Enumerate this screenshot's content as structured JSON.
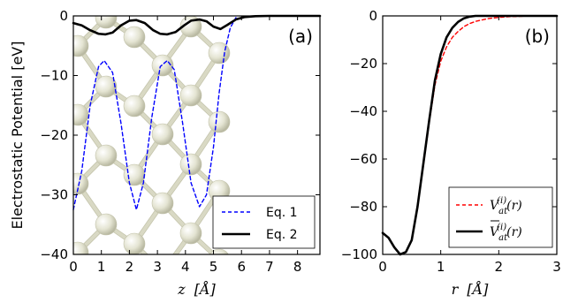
{
  "chart_data": [
    {
      "type": "line",
      "panel_label": "(a)",
      "xlabel_var": "z",
      "xlabel_unit": "[Å]",
      "ylabel": "Electrostatic Potential [eV]",
      "xlim": [
        0,
        8.8
      ],
      "ylim": [
        -40,
        0
      ],
      "xticks": [
        0,
        1,
        2,
        3,
        4,
        5,
        6,
        7,
        8
      ],
      "yticks": [
        0,
        -10,
        -20,
        -30,
        -40
      ],
      "legend_position": "bottom-right",
      "background": "atomic lattice illustration (spheres and bonds)",
      "series": [
        {
          "name": "Eq. 1",
          "style": "dashed",
          "color": "#0000ff",
          "x": [
            0.0,
            0.3,
            0.6,
            0.9,
            1.1,
            1.4,
            1.7,
            2.0,
            2.25,
            2.5,
            2.8,
            3.1,
            3.35,
            3.6,
            3.9,
            4.2,
            4.5,
            4.75,
            5.0,
            5.2,
            5.4,
            5.6,
            5.8
          ],
          "y": [
            -32.5,
            -26.0,
            -15.0,
            -8.5,
            -7.5,
            -9.5,
            -18.0,
            -28.0,
            -32.5,
            -28.0,
            -17.0,
            -8.5,
            -7.5,
            -9.0,
            -18.0,
            -28.0,
            -32.0,
            -30.0,
            -22.0,
            -13.0,
            -6.0,
            -2.0,
            -0.3
          ]
        },
        {
          "name": "Eq. 2",
          "style": "solid",
          "color": "#000000",
          "x": [
            0.0,
            0.3,
            0.6,
            0.9,
            1.15,
            1.4,
            1.7,
            2.0,
            2.25,
            2.55,
            2.85,
            3.1,
            3.35,
            3.65,
            3.95,
            4.2,
            4.5,
            4.75,
            5.0,
            5.25,
            5.5,
            5.8,
            6.1,
            6.5,
            7.0,
            8.8
          ],
          "y": [
            -1.2,
            -1.6,
            -2.4,
            -3.0,
            -3.1,
            -2.8,
            -1.6,
            -0.8,
            -0.7,
            -1.2,
            -2.4,
            -3.0,
            -3.1,
            -2.7,
            -1.6,
            -0.8,
            -0.6,
            -0.9,
            -1.8,
            -2.2,
            -1.5,
            -0.6,
            -0.2,
            -0.05,
            0.0,
            0.0
          ]
        }
      ]
    },
    {
      "type": "line",
      "panel_label": "(b)",
      "xlabel_var": "r",
      "xlabel_unit": "[Å]",
      "ylabel": "",
      "xlim": [
        0,
        3
      ],
      "ylim": [
        -100,
        0
      ],
      "xticks": [
        0,
        1,
        2,
        3
      ],
      "yticks": [
        0,
        -20,
        -40,
        -60,
        -80,
        -100
      ],
      "legend_position": "bottom-right",
      "series": [
        {
          "name": "V_at^(i)(r)",
          "legend_base": "V",
          "legend_sub": "at",
          "legend_sup": "(i)",
          "legend_arg": "(r)",
          "legend_bar": false,
          "style": "dashed",
          "color": "#ff0000",
          "x": [
            0.0,
            0.1,
            0.2,
            0.3,
            0.4,
            0.5,
            0.6,
            0.7,
            0.8,
            0.9,
            1.0,
            1.1,
            1.2,
            1.3,
            1.4,
            1.5,
            1.6,
            1.8,
            2.0,
            2.2,
            2.5,
            3.0
          ],
          "y": [
            -91,
            -93,
            -97,
            -100,
            -99,
            -94,
            -80,
            -63,
            -45,
            -29,
            -19,
            -13,
            -9,
            -6.5,
            -4.5,
            -3.2,
            -2.3,
            -1.2,
            -0.6,
            -0.3,
            -0.1,
            0.0
          ]
        },
        {
          "name": "V̄_at^(i)(r)",
          "legend_base": "V",
          "legend_sub": "at",
          "legend_sup": "(i)",
          "legend_arg": "(r)",
          "legend_bar": true,
          "style": "solid",
          "color": "#000000",
          "x": [
            0.0,
            0.1,
            0.2,
            0.3,
            0.4,
            0.5,
            0.6,
            0.7,
            0.8,
            0.9,
            1.0,
            1.1,
            1.2,
            1.3,
            1.4,
            1.5,
            1.6,
            1.8,
            2.0,
            2.5,
            3.0
          ],
          "y": [
            -91,
            -93,
            -97,
            -100,
            -99,
            -94,
            -80,
            -62,
            -44,
            -27,
            -16,
            -9,
            -5,
            -2.5,
            -1.0,
            -0.3,
            0.0,
            0.0,
            0.0,
            0.0,
            0.0
          ]
        }
      ]
    }
  ]
}
